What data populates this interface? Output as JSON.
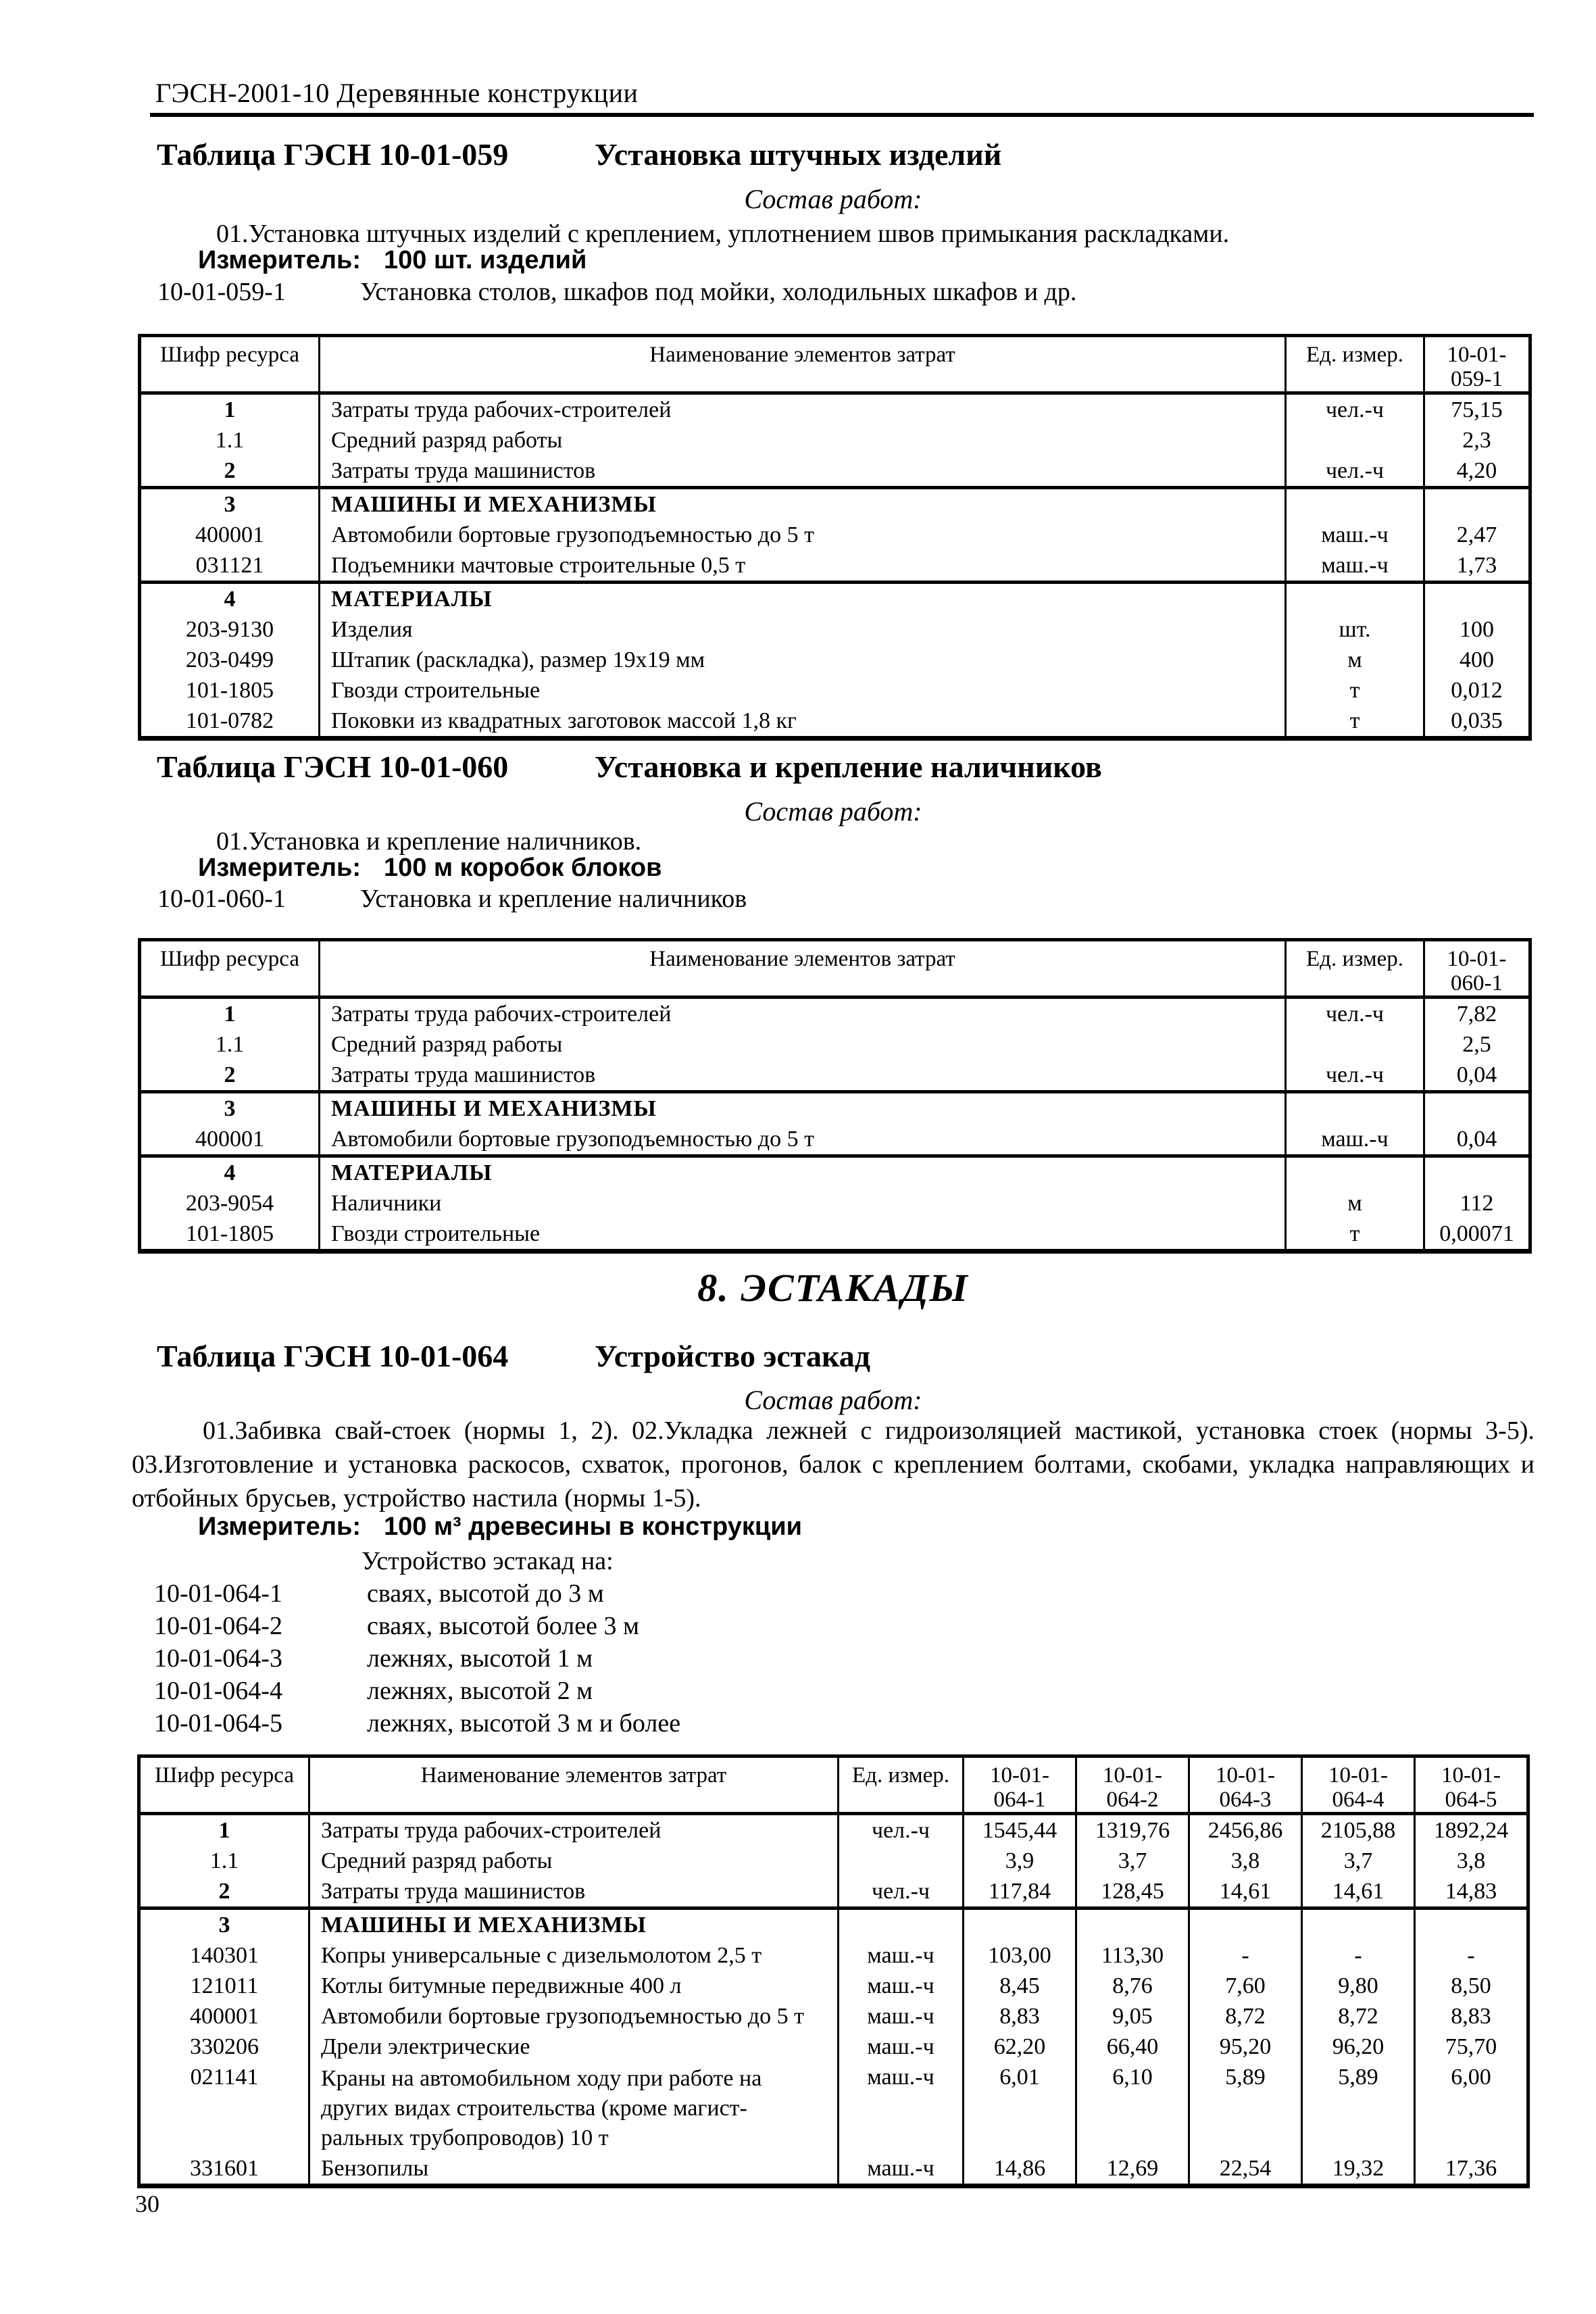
{
  "page": {
    "header": "ГЭСН-2001-10 Деревянные конструкции",
    "number": "30"
  },
  "labels": {
    "sostav": "Состав работ:",
    "izmeritel": "Измеритель:"
  },
  "section059": {
    "table_label": "Таблица ГЭСН 10-01-059",
    "table_title": "Установка штучных изделий",
    "works": "01.Установка штучных изделий с креплением, уплотнением швов примыкания раскладками.",
    "izmeritel_value": "100 шт. изделий",
    "norms": [
      {
        "code": "10-01-059-1",
        "desc": "Установка столов, шкафов под мойки, холодильных шкафов и др."
      }
    ],
    "table": {
      "headers": [
        "Шифр ресурса",
        "Наименование элементов затрат",
        "Ед. измер."
      ],
      "norm_ids": [
        [
          "10-01-",
          "059-1"
        ]
      ],
      "rows": [
        {
          "code": "1",
          "name": "Затраты труда рабочих-строителей",
          "unit": "чел.-ч",
          "values": [
            "75,15"
          ],
          "code_bold": true
        },
        {
          "code": "1.1",
          "name": "Средний разряд работы",
          "unit": "",
          "values": [
            "2,3"
          ]
        },
        {
          "code": "2",
          "name": "Затраты труда машинистов",
          "unit": "чел.-ч",
          "values": [
            "4,20"
          ],
          "code_bold": true
        },
        {
          "code": "3",
          "name": "МАШИНЫ И МЕХАНИЗМЫ",
          "unit": "",
          "values": [
            ""
          ],
          "bold": true,
          "code_bold": true,
          "sep": true
        },
        {
          "code": "400001",
          "name": "Автомобили бортовые грузоподъемностью до 5 т",
          "unit": "маш.-ч",
          "values": [
            "2,47"
          ]
        },
        {
          "code": "031121",
          "name": "Подъемники мачтовые строительные 0,5 т",
          "unit": "маш.-ч",
          "values": [
            "1,73"
          ]
        },
        {
          "code": "4",
          "name": "МАТЕРИАЛЫ",
          "unit": "",
          "values": [
            ""
          ],
          "bold": true,
          "code_bold": true,
          "sep": true
        },
        {
          "code": "203-9130",
          "name": "Изделия",
          "unit": "шт.",
          "values": [
            "100"
          ]
        },
        {
          "code": "203-0499",
          "name": "Штапик (раскладка), размер 19х19 мм",
          "unit": "м",
          "values": [
            "400"
          ]
        },
        {
          "code": "101-1805",
          "name": "Гвозди строительные",
          "unit": "т",
          "values": [
            "0,012"
          ]
        },
        {
          "code": "101-0782",
          "name": "Поковки из квадратных заготовок массой 1,8 кг",
          "unit": "т",
          "values": [
            "0,035"
          ]
        }
      ]
    }
  },
  "section060": {
    "table_label": "Таблица ГЭСН 10-01-060",
    "table_title": "Установка и крепление наличников",
    "works": "01.Установка и крепление наличников.",
    "izmeritel_value": "100 м коробок блоков",
    "norms": [
      {
        "code": "10-01-060-1",
        "desc": "Установка и крепление наличников"
      }
    ],
    "table": {
      "headers": [
        "Шифр ресурса",
        "Наименование элементов затрат",
        "Ед. измер."
      ],
      "norm_ids": [
        [
          "10-01-",
          "060-1"
        ]
      ],
      "rows": [
        {
          "code": "1",
          "name": "Затраты труда рабочих-строителей",
          "unit": "чел.-ч",
          "values": [
            "7,82"
          ],
          "code_bold": true
        },
        {
          "code": "1.1",
          "name": "Средний разряд работы",
          "unit": "",
          "values": [
            "2,5"
          ]
        },
        {
          "code": "2",
          "name": "Затраты труда машинистов",
          "unit": "чел.-ч",
          "values": [
            "0,04"
          ],
          "code_bold": true
        },
        {
          "code": "3",
          "name": "МАШИНЫ И МЕХАНИЗМЫ",
          "unit": "",
          "values": [
            ""
          ],
          "bold": true,
          "code_bold": true,
          "sep": true
        },
        {
          "code": "400001",
          "name": "Автомобили бортовые грузоподъемностью до 5 т",
          "unit": "маш.-ч",
          "values": [
            "0,04"
          ]
        },
        {
          "code": "4",
          "name": "МАТЕРИАЛЫ",
          "unit": "",
          "values": [
            ""
          ],
          "bold": true,
          "code_bold": true,
          "sep": true
        },
        {
          "code": "203-9054",
          "name": "Наличники",
          "unit": "м",
          "values": [
            "112"
          ]
        },
        {
          "code": "101-1805",
          "name": "Гвозди строительные",
          "unit": "т",
          "values": [
            "0,00071"
          ]
        }
      ]
    }
  },
  "section8": {
    "heading": "8. ЭСТАКАДЫ"
  },
  "section064": {
    "table_label": "Таблица ГЭСН 10-01-064",
    "table_title": "Устройство эстакад",
    "works": "01.Забивка свай-стоек (нормы 1, 2). 02.Укладка лежней с гидроизоляцией мастикой, установка стоек (нормы 3-5). 03.Изготовление и установка раскосов, схваток, прогонов, балок с креплением болтами, скобами, укладка направляющих и отбойных брусьев, устройство настила (нормы 1-5).",
    "izmeritel_value": "100 м³ древесины в конструкции",
    "norm_intro": "Устройство эстакад на:",
    "norms": [
      {
        "code": "10-01-064-1",
        "desc": "сваях, высотой до 3 м"
      },
      {
        "code": "10-01-064-2",
        "desc": "сваях, высотой более 3 м"
      },
      {
        "code": "10-01-064-3",
        "desc": "лежнях, высотой 1 м"
      },
      {
        "code": "10-01-064-4",
        "desc": "лежнях, высотой 2 м"
      },
      {
        "code": "10-01-064-5",
        "desc": "лежнях, высотой 3 м и более"
      }
    ],
    "table": {
      "headers": [
        "Шифр ресурса",
        "Наименование элементов затрат",
        "Ед. измер."
      ],
      "norm_ids": [
        [
          "10-01-",
          "064-1"
        ],
        [
          "10-01-",
          "064-2"
        ],
        [
          "10-01-",
          "064-3"
        ],
        [
          "10-01-",
          "064-4"
        ],
        [
          "10-01-",
          "064-5"
        ]
      ],
      "rows": [
        {
          "code": "1",
          "name": "Затраты труда рабочих-строителей",
          "unit": "чел.-ч",
          "values": [
            "1545,44",
            "1319,76",
            "2456,86",
            "2105,88",
            "1892,24"
          ],
          "code_bold": true
        },
        {
          "code": "1.1",
          "name": "Средний разряд работы",
          "unit": "",
          "values": [
            "3,9",
            "3,7",
            "3,8",
            "3,7",
            "3,8"
          ]
        },
        {
          "code": "2",
          "name": "Затраты труда машинистов",
          "unit": "чел.-ч",
          "values": [
            "117,84",
            "128,45",
            "14,61",
            "14,61",
            "14,83"
          ],
          "code_bold": true
        },
        {
          "code": "3",
          "name": "МАШИНЫ И МЕХАНИЗМЫ",
          "unit": "",
          "values": [
            "",
            "",
            "",
            "",
            ""
          ],
          "bold": true,
          "code_bold": true,
          "sep": true
        },
        {
          "code": "140301",
          "name": "Копры универсальные с дизельмолотом 2,5 т",
          "unit": "маш.-ч",
          "values": [
            "103,00",
            "113,30",
            "-",
            "-",
            "-"
          ]
        },
        {
          "code": "121011",
          "name": "Котлы битумные передвижные 400 л",
          "unit": "маш.-ч",
          "values": [
            "8,45",
            "8,76",
            "7,60",
            "9,80",
            "8,50"
          ]
        },
        {
          "code": "400001",
          "name": "Автомобили бортовые грузоподъемностью до 5 т",
          "unit": "маш.-ч",
          "values": [
            "8,83",
            "9,05",
            "8,72",
            "8,72",
            "8,83"
          ]
        },
        {
          "code": "330206",
          "name": "Дрели электрические",
          "unit": "маш.-ч",
          "values": [
            "62,20",
            "66,40",
            "95,20",
            "96,20",
            "75,70"
          ]
        },
        {
          "code": "021141",
          "name": [
            "Краны на автомобильном ходу при работе на",
            "других видах строительства (кроме магист-",
            "ральных трубопроводов) 10 т"
          ],
          "unit": "маш.-ч",
          "values": [
            "6,01",
            "6,10",
            "5,89",
            "5,89",
            "6,00"
          ]
        },
        {
          "code": "331601",
          "name": "Бензопилы",
          "unit": "маш.-ч",
          "values": [
            "14,86",
            "12,69",
            "22,54",
            "19,32",
            "17,36"
          ]
        }
      ]
    }
  }
}
